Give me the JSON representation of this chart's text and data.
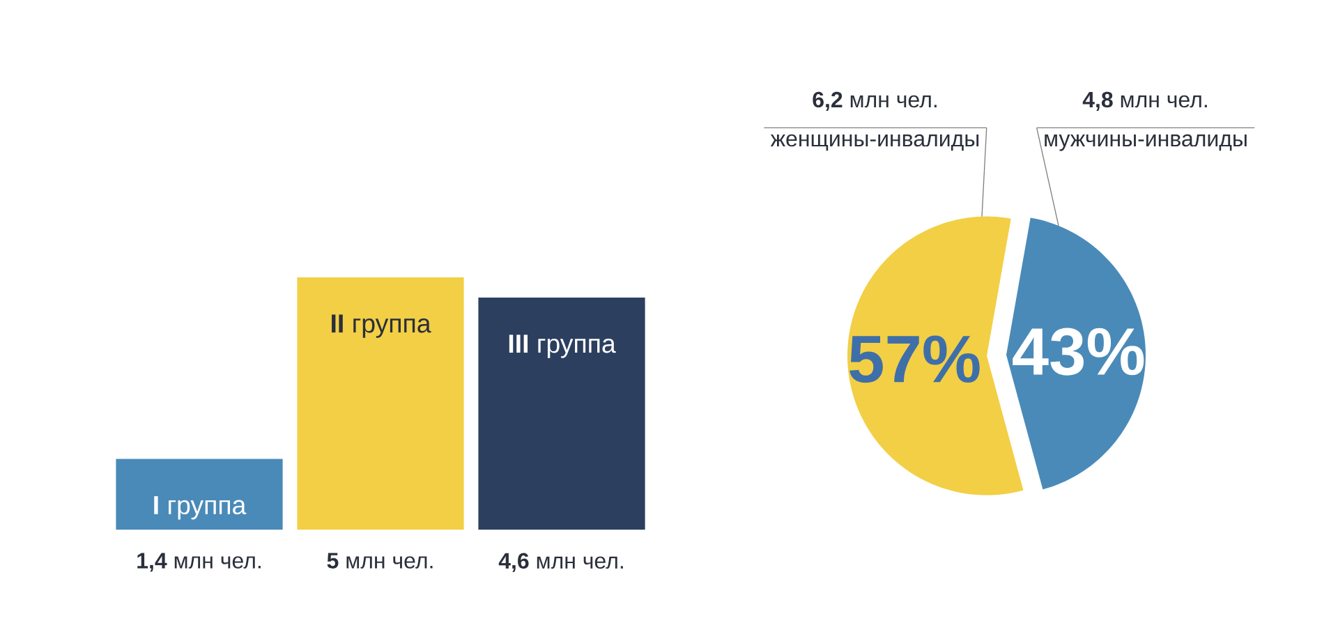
{
  "chart_data": [
    {
      "type": "bar",
      "categories": [
        "**I** группа",
        "**II** группа",
        "**III** группа"
      ],
      "values": [
        1.4,
        5,
        4.6
      ],
      "colors": [
        "#4a8ab8",
        "#f2cf45",
        "#2c3f5f"
      ],
      "value_labels": [
        "**1,4** млн чел.",
        "**5** млн чел.",
        "**4,6** млн чел."
      ]
    },
    {
      "type": "pie",
      "categories": [
        "женщины-инвалиды",
        "мужчины-инвалиды"
      ],
      "values": [
        57,
        43
      ],
      "colors": [
        "#f2cf45",
        "#4a8ab8"
      ],
      "value_labels": [
        "57%",
        "43%"
      ],
      "annotations": [
        "**6,2** млн чел.",
        "**4,8** млн чел."
      ]
    }
  ]
}
